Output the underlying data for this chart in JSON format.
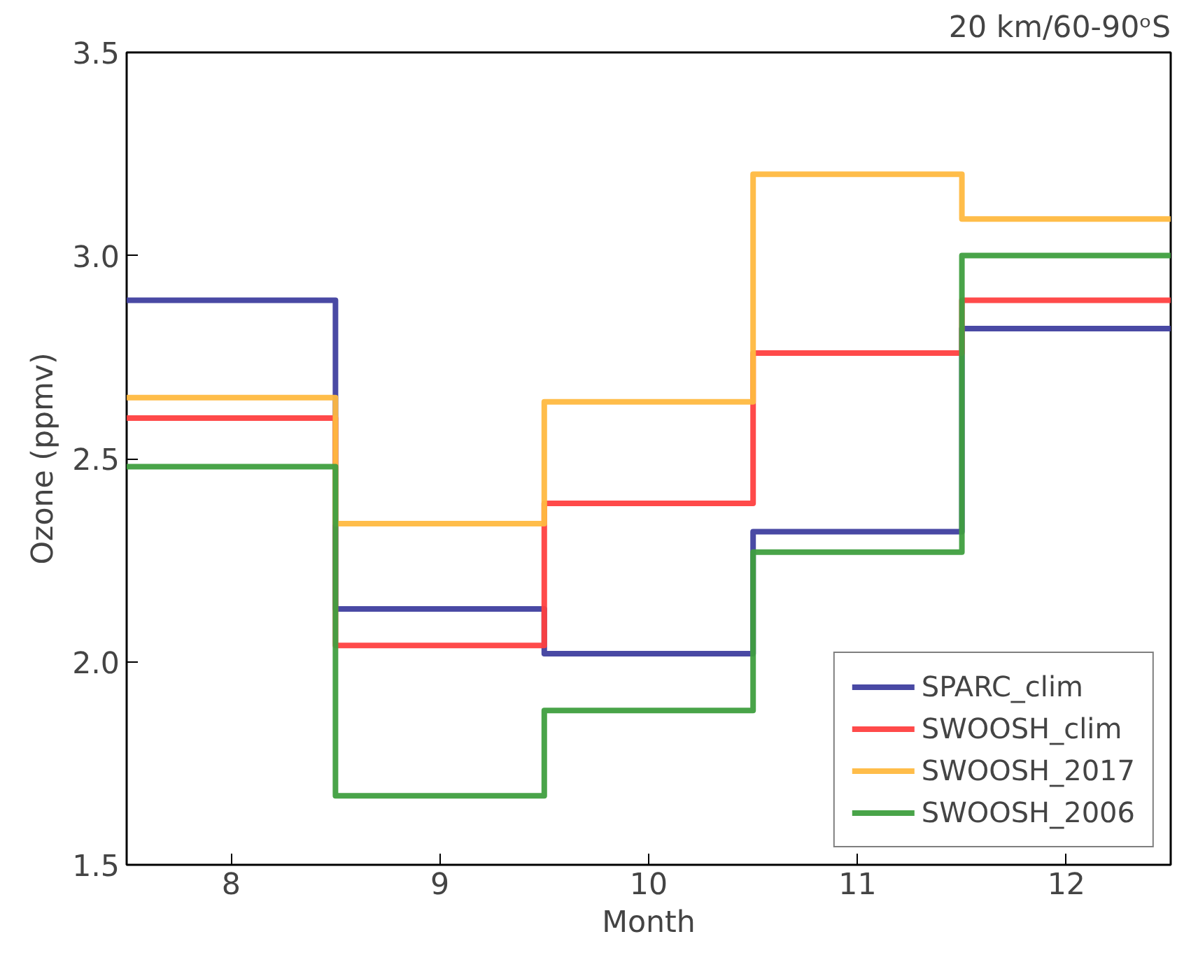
{
  "chart_data": {
    "type": "step",
    "title": "20 km/60-90ᵒS",
    "xlabel": "Month",
    "ylabel": "Ozone (ppmv)",
    "x": [
      8,
      9,
      10,
      11,
      12
    ],
    "series": [
      {
        "name": "SPARC_clim",
        "color": "#3f3f9f",
        "values": [
          2.89,
          2.13,
          2.02,
          2.32,
          2.82
        ]
      },
      {
        "name": "SWOOSH_clim",
        "color": "#ff4040",
        "values": [
          2.6,
          2.04,
          2.39,
          2.76,
          2.89
        ]
      },
      {
        "name": "SWOOSH_2017",
        "color": "#ffb940",
        "values": [
          2.65,
          2.34,
          2.64,
          3.2,
          3.09
        ]
      },
      {
        "name": "SWOOSH_2006",
        "color": "#3f9f3f",
        "values": [
          2.48,
          1.67,
          1.88,
          2.27,
          3.0
        ]
      }
    ],
    "xlim": [
      7.5,
      12.5
    ],
    "ylim": [
      1.5,
      3.5
    ],
    "xticks": [
      8,
      9,
      10,
      11,
      12
    ],
    "yticks": [
      {
        "value": 1.5,
        "label": "1.5"
      },
      {
        "value": 2.0,
        "label": "2.0"
      },
      {
        "value": 2.5,
        "label": "2.5"
      },
      {
        "value": 3.0,
        "label": "3.0"
      },
      {
        "value": 3.5,
        "label": "3.5"
      }
    ],
    "legend": "bottom right",
    "grid": false,
    "line_style": "solid"
  }
}
